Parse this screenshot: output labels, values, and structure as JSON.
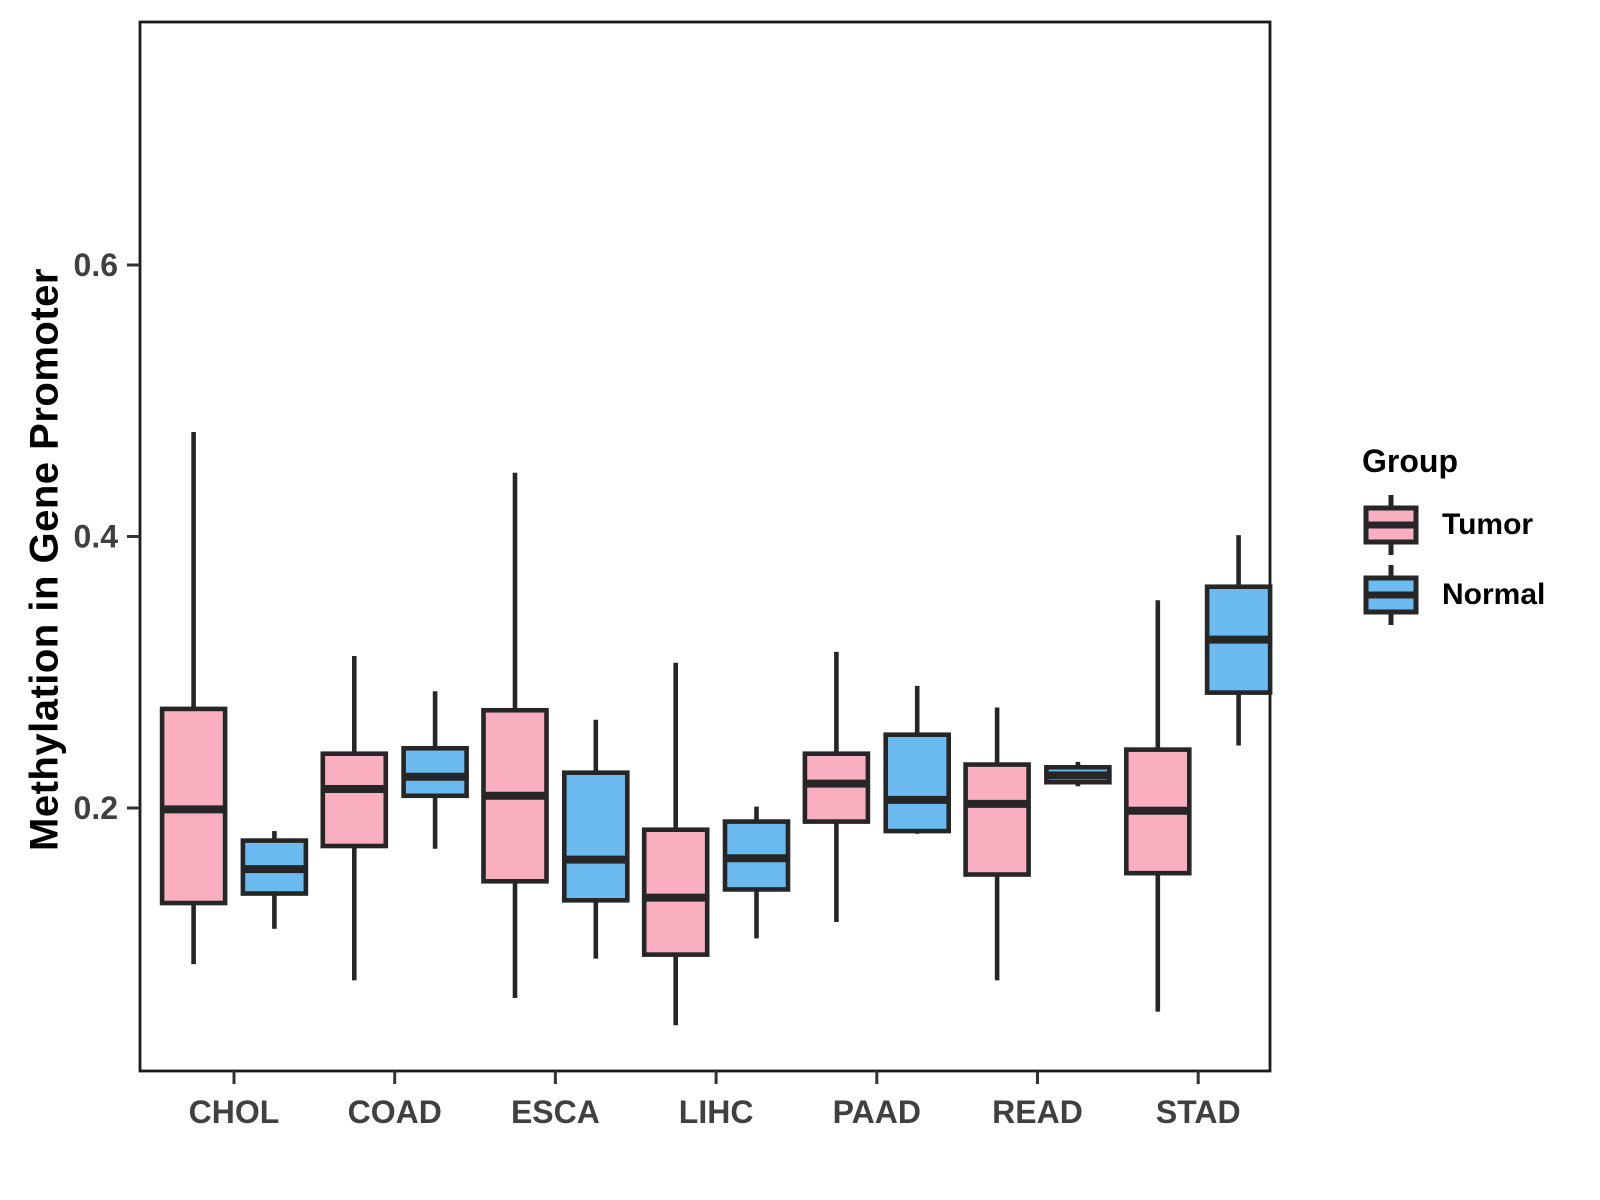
{
  "figure": {
    "background": "#ffffff",
    "panel_border_color": "#1a1a1a",
    "tick_color": "#333333",
    "tick_label_color": "#404040",
    "axis_title_color": "#000000"
  },
  "legend": {
    "title": "Group",
    "entries": [
      {
        "label": "Tumor",
        "color": "#F9AFC0"
      },
      {
        "label": "Normal",
        "color": "#6BBBF0"
      }
    ]
  },
  "chart_data": {
    "type": "boxplot",
    "title": "",
    "xlabel": "",
    "ylabel": "Methylation in Gene Promoter",
    "categories": [
      "CHOL",
      "COAD",
      "ESCA",
      "LIHC",
      "PAAD",
      "READ",
      "STAD"
    ],
    "groups": [
      "Tumor",
      "Normal"
    ],
    "colors": {
      "Tumor": "#F9AFC0",
      "Normal": "#6BBBF0"
    },
    "stroke_color": "#262626",
    "y_ticks": [
      0.2,
      0.4,
      0.6
    ],
    "ylim": [
      0.005,
      0.78
    ],
    "grid": false,
    "legend_position": "right",
    "legend_title": "Group",
    "series": [
      {
        "name": "Tumor",
        "boxes": [
          {
            "category": "CHOL",
            "whislo": 0.085,
            "q1": 0.13,
            "med": 0.199,
            "q3": 0.273,
            "whishi": 0.477
          },
          {
            "category": "COAD",
            "whislo": 0.073,
            "q1": 0.172,
            "med": 0.214,
            "q3": 0.24,
            "whishi": 0.312
          },
          {
            "category": "ESCA",
            "whislo": 0.06,
            "q1": 0.146,
            "med": 0.209,
            "q3": 0.272,
            "whishi": 0.447
          },
          {
            "category": "LIHC",
            "whislo": 0.04,
            "q1": 0.092,
            "med": 0.134,
            "q3": 0.184,
            "whishi": 0.307
          },
          {
            "category": "PAAD",
            "whislo": 0.116,
            "q1": 0.19,
            "med": 0.218,
            "q3": 0.24,
            "whishi": 0.315
          },
          {
            "category": "READ",
            "whislo": 0.073,
            "q1": 0.151,
            "med": 0.203,
            "q3": 0.232,
            "whishi": 0.274
          },
          {
            "category": "STAD",
            "whislo": 0.05,
            "q1": 0.152,
            "med": 0.198,
            "q3": 0.243,
            "whishi": 0.353
          }
        ]
      },
      {
        "name": "Normal",
        "boxes": [
          {
            "category": "CHOL",
            "whislo": 0.111,
            "q1": 0.137,
            "med": 0.155,
            "q3": 0.176,
            "whishi": 0.183
          },
          {
            "category": "COAD",
            "whislo": 0.17,
            "q1": 0.209,
            "med": 0.223,
            "q3": 0.244,
            "whishi": 0.286
          },
          {
            "category": "ESCA",
            "whislo": 0.089,
            "q1": 0.132,
            "med": 0.162,
            "q3": 0.226,
            "whishi": 0.265
          },
          {
            "category": "LIHC",
            "whislo": 0.104,
            "q1": 0.14,
            "med": 0.163,
            "q3": 0.19,
            "whishi": 0.201
          },
          {
            "category": "PAAD",
            "whislo": 0.181,
            "q1": 0.183,
            "med": 0.206,
            "q3": 0.254,
            "whishi": 0.29
          },
          {
            "category": "READ",
            "whislo": 0.216,
            "q1": 0.219,
            "med": 0.224,
            "q3": 0.23,
            "whishi": 0.234
          },
          {
            "category": "STAD",
            "whislo": 0.246,
            "q1": 0.285,
            "med": 0.324,
            "q3": 0.363,
            "whishi": 0.401
          }
        ]
      }
    ]
  }
}
